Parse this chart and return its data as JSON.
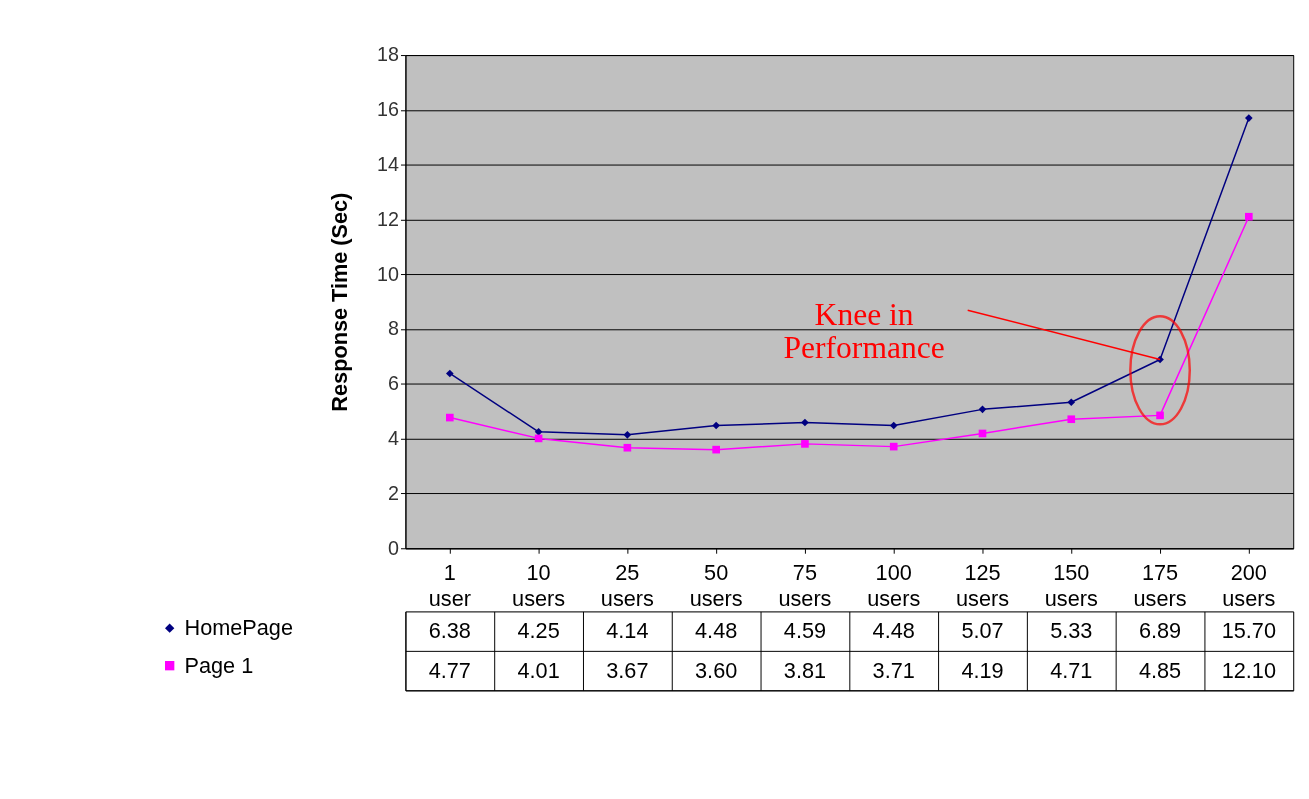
{
  "chart_data": {
    "type": "line",
    "ylabel": "Response Time (Sec)",
    "categories": [
      "1 user",
      "10 users",
      "25 users",
      "50 users",
      "75 users",
      "100 users",
      "125 users",
      "150 users",
      "175 users",
      "200 users"
    ],
    "series": [
      {
        "name": "HomePage",
        "color": "#000080",
        "marker": "diamond",
        "values": [
          6.38,
          4.25,
          4.14,
          4.48,
          4.59,
          4.48,
          5.07,
          5.33,
          6.89,
          15.7
        ],
        "value_labels": [
          "6.38",
          "4.25",
          "4.14",
          "4.48",
          "4.59",
          "4.48",
          "5.07",
          "5.33",
          "6.89",
          "15.70"
        ]
      },
      {
        "name": "Page 1",
        "color": "#ff00ff",
        "marker": "square",
        "values": [
          4.77,
          4.01,
          3.67,
          3.6,
          3.81,
          3.71,
          4.19,
          4.71,
          4.85,
          12.1
        ],
        "value_labels": [
          "4.77",
          "4.01",
          "3.67",
          "3.60",
          "3.81",
          "3.71",
          "4.19",
          "4.71",
          "4.85",
          "12.10"
        ]
      }
    ],
    "ylim": [
      0,
      18
    ],
    "yticks": [
      0,
      2,
      4,
      6,
      8,
      10,
      12,
      14,
      16,
      18
    ],
    "grid": "y",
    "legend": "bottom",
    "line_style": "solid",
    "annotations": [
      {
        "text": "Knee in\nPerformance",
        "x": "175 users",
        "y": 6.89
      }
    ]
  }
}
